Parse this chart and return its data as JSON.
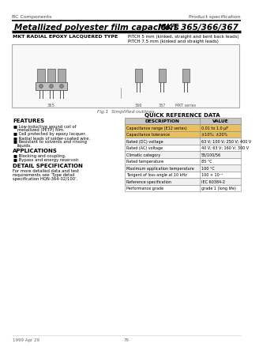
{
  "header_left": "BC Components",
  "header_right": "Product specification",
  "title_left": "Metallized polyester film capacitors",
  "title_right": "MKT 365/366/367",
  "subtitle_left": "MKT RADIAL EPOXY LACQUERED TYPE",
  "subtitle_right_line1": "PITCH 5 mm (kinked, straight and bent back leads)",
  "subtitle_right_line2": "PITCH 7.5 mm (kinked and straight leads)",
  "fig_caption": "Fig.1  Simplified outlines.",
  "features_title": "FEATURES",
  "features": [
    [
      "Low-inductive wound coil of",
      "metallized (PETP) film."
    ],
    [
      "Cell protected by epoxy lacquer."
    ],
    [
      "Radial leads of solder-coated wire."
    ],
    [
      "Resistant to solvents and rinsing",
      "liquids."
    ]
  ],
  "applications_title": "APPLICATIONS",
  "applications": [
    "Blocking and coupling.",
    "Bypass and energy reservoir."
  ],
  "detail_title": "DETAIL SPECIFICATION",
  "detail_lines": [
    "For more detailed data and test",
    "requirements see ‘Type detail",
    "specification HQN-364-02/100’."
  ],
  "qrd_title": "QUICK REFERENCE DATA",
  "table_headers": [
    "DESCRIPTION",
    "VALUE"
  ],
  "table_rows": [
    [
      "Capacitance range (E12 series)",
      "0.01 to 1.0 μF"
    ],
    [
      "Capacitance tolerance",
      "±10%; ±20%"
    ],
    [
      "Rated (DC) voltage",
      "63 V; 100 V; 250 V; 400 V"
    ],
    [
      "Rated (AC) voltage",
      "40 V; 63 V; 160 V; 300 V"
    ],
    [
      "Climatic category",
      "55/100/56"
    ],
    [
      "Rated temperature",
      "85 °C"
    ],
    [
      "Maximum application temperature",
      "100 °C"
    ],
    [
      "Tangent of loss angle at 10 kHz",
      "100 × 10⁻⁴"
    ],
    [
      "Reference specification",
      "IEC 60384-2"
    ],
    [
      "Performance grade",
      "grade 1 (long life)"
    ]
  ],
  "highlight_rows": [
    0,
    1
  ],
  "footer_left": "1999 Apr 29",
  "footer_center": "79",
  "bg_color": "#ffffff",
  "header_line_color": "#000000",
  "title_underline_color": "#000000",
  "table_border_color": "#888888",
  "table_header_bg": "#c8c8c8",
  "highlight_bg": "#e8c060",
  "row_bg_even": "#f0f0f0",
  "row_bg_odd": "#ffffff",
  "diagram_box_color": "#aaaaaa",
  "diagram_bg": "#f8f8f8",
  "cap_body_color": "#aaaaaa",
  "cap_edge_color": "#555555",
  "cap_base_color": "#c0c0c0"
}
